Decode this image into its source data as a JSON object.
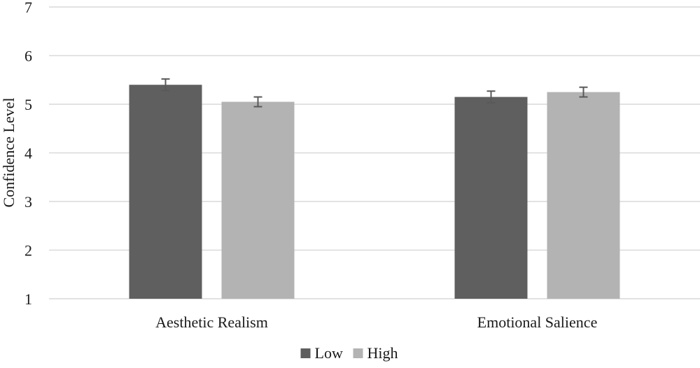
{
  "chart_data": {
    "type": "bar",
    "title": "",
    "xlabel": "",
    "ylabel": "Confidence Level",
    "ylim": [
      1,
      7
    ],
    "yticks": [
      1,
      2,
      3,
      4,
      5,
      6,
      7
    ],
    "categories": [
      "Aesthetic Realism",
      "Emotional Salience"
    ],
    "series": [
      {
        "name": "Low",
        "values": [
          5.4,
          5.15
        ],
        "errors": [
          0.12,
          0.12
        ],
        "color": "#5f5f5f"
      },
      {
        "name": "High",
        "values": [
          5.05,
          5.25
        ],
        "errors": [
          0.1,
          0.1
        ],
        "color": "#b3b3b3"
      }
    ],
    "grid": true,
    "legend": "bottom"
  }
}
